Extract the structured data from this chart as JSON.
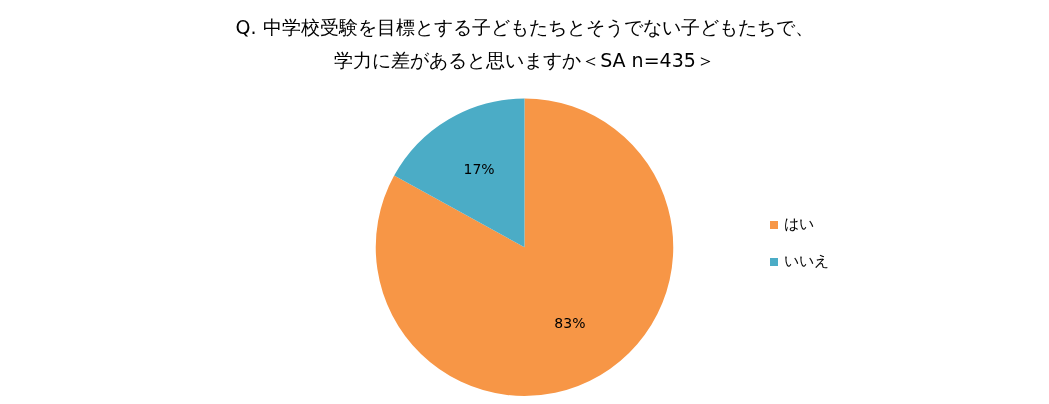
{
  "chart_data": {
    "type": "pie",
    "title": "Q. 中学校受験を目標とする子どもたちとそうでない子どもたちで、学力に差があると思いますか＜SA n=435＞",
    "categories": [
      "はい",
      "いいえ"
    ],
    "values": [
      83,
      17
    ],
    "value_labels": [
      "83%",
      "17%"
    ],
    "colors": [
      "#f79646",
      "#4bacc6"
    ],
    "legend": "right"
  }
}
